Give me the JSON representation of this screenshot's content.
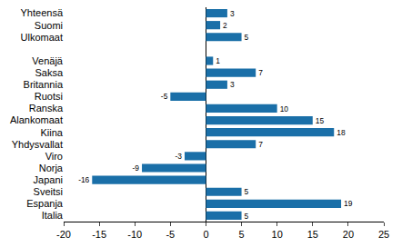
{
  "chart_data": {
    "type": "bar",
    "orientation": "horizontal",
    "data_labels": true,
    "grid": false,
    "color": "#1a6fa8",
    "categories": [
      "Yhteensä",
      "Suomi",
      "Ulkomaat",
      null,
      "Venäjä",
      "Saksa",
      "Britannia",
      "Ruotsi",
      "Ranska",
      "Alankomaat",
      "Kiina",
      "Yhdysvallat",
      "Viro",
      "Norja",
      "Japani",
      "Sveitsi",
      "Espanja",
      "Italia"
    ],
    "values": [
      3,
      2,
      5,
      null,
      1,
      7,
      3,
      -5,
      10,
      15,
      18,
      7,
      -3,
      -9,
      -16,
      5,
      19,
      5
    ],
    "xlim": [
      -20,
      25
    ],
    "xticks": [
      -20,
      -15,
      -10,
      -5,
      0,
      5,
      10,
      15,
      20,
      25
    ]
  }
}
